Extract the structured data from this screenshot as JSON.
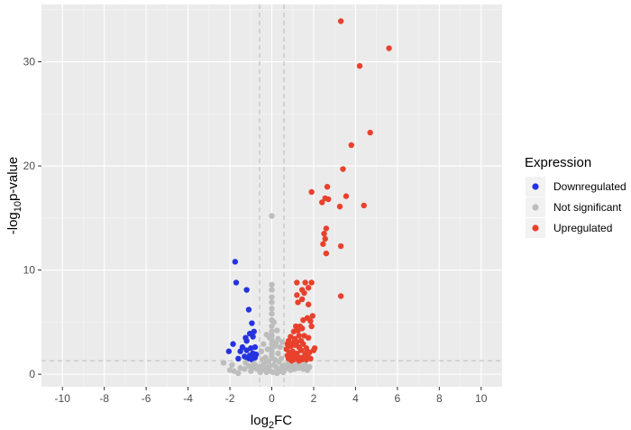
{
  "chart_data": {
    "type": "scatter",
    "title": "",
    "xlabel": "log2FC",
    "ylabel": "-log10p-value",
    "xlim": [
      -11,
      11
    ],
    "ylim": [
      -1.2,
      35.5
    ],
    "xticks": [
      -10,
      -8,
      -6,
      -4,
      -2,
      0,
      2,
      4,
      6,
      8,
      10
    ],
    "yticks": [
      0,
      10,
      20,
      30
    ],
    "x_major_tick_labels": [
      "-10",
      "-8",
      "-6",
      "-4",
      "-2",
      "0",
      "2",
      "4",
      "6",
      "8",
      "10"
    ],
    "y_tick_labels": [
      "0",
      "10",
      "20",
      "30"
    ],
    "grid": true,
    "legend_position": "right",
    "fc_threshold": 0.58,
    "p_threshold": 1.3,
    "legend_title": "Expression",
    "series": [
      {
        "name": "Downregulated",
        "color": "#2432e0",
        "points": [
          [
            -1.75,
            10.8
          ],
          [
            -1.7,
            8.8
          ],
          [
            -1.2,
            8.1
          ],
          [
            -1.1,
            6.2
          ],
          [
            -0.95,
            4.9
          ],
          [
            -0.85,
            4.1
          ],
          [
            -1.05,
            3.9
          ],
          [
            -0.9,
            3.6
          ],
          [
            -1.25,
            3.5
          ],
          [
            -1.2,
            3.2
          ],
          [
            -1.85,
            2.9
          ],
          [
            -1.4,
            2.6
          ],
          [
            -1.0,
            2.5
          ],
          [
            -0.8,
            2.6
          ],
          [
            -1.2,
            2.3
          ],
          [
            -1.5,
            2.2
          ],
          [
            -2.05,
            2.2
          ],
          [
            -0.9,
            2.0
          ],
          [
            -1.05,
            1.8
          ],
          [
            -1.3,
            1.7
          ],
          [
            -0.75,
            1.9
          ],
          [
            -1.6,
            1.5
          ],
          [
            -1.15,
            1.5
          ],
          [
            -0.95,
            1.4
          ],
          [
            -0.8,
            1.6
          ]
        ]
      },
      {
        "name": "Not significant",
        "color": "#bdbdbd",
        "points": [
          [
            0.0,
            15.2
          ],
          [
            0.0,
            8.6
          ],
          [
            0.0,
            8.1
          ],
          [
            0.0,
            7.4
          ],
          [
            0.0,
            6.9
          ],
          [
            0.0,
            6.3
          ],
          [
            0.0,
            5.8
          ],
          [
            0.0,
            5.2
          ],
          [
            0.0,
            4.6
          ],
          [
            0.0,
            4.1
          ],
          [
            0.0,
            3.7
          ],
          [
            0.0,
            3.3
          ],
          [
            0.0,
            2.9
          ],
          [
            0.0,
            2.5
          ],
          [
            0.0,
            2.2
          ],
          [
            0.0,
            1.9
          ],
          [
            0.0,
            1.6
          ],
          [
            0.15,
            1.4
          ],
          [
            -0.15,
            1.2
          ],
          [
            0.2,
            3.0
          ],
          [
            -0.2,
            2.4
          ],
          [
            0.3,
            2.0
          ],
          [
            -0.3,
            1.6
          ],
          [
            0.4,
            2.6
          ],
          [
            -0.4,
            2.9
          ],
          [
            0.5,
            3.1
          ],
          [
            -0.5,
            2.2
          ],
          [
            0.45,
            1.5
          ],
          [
            -0.45,
            1.4
          ],
          [
            0.1,
            0.9
          ],
          [
            0.2,
            0.7
          ],
          [
            0.3,
            0.5
          ],
          [
            0.4,
            0.3
          ],
          [
            0.5,
            0.8
          ],
          [
            0.6,
            0.4
          ],
          [
            -0.1,
            0.8
          ],
          [
            -0.2,
            0.6
          ],
          [
            -0.3,
            0.4
          ],
          [
            -0.4,
            0.9
          ],
          [
            -0.5,
            0.5
          ],
          [
            -0.6,
            0.7
          ],
          [
            0.7,
            0.9
          ],
          [
            0.8,
            0.6
          ],
          [
            0.9,
            0.4
          ],
          [
            1.0,
            0.8
          ],
          [
            1.1,
            0.5
          ],
          [
            1.2,
            0.9
          ],
          [
            -0.7,
            0.5
          ],
          [
            -0.8,
            0.9
          ],
          [
            -0.9,
            0.6
          ],
          [
            -1.0,
            0.3
          ],
          [
            -1.1,
            0.8
          ],
          [
            -1.3,
            0.5
          ],
          [
            1.3,
            0.6
          ],
          [
            1.4,
            0.8
          ],
          [
            1.5,
            0.5
          ],
          [
            1.6,
            0.9
          ],
          [
            1.7,
            0.4
          ],
          [
            1.8,
            0.7
          ],
          [
            -1.5,
            0.6
          ],
          [
            -1.8,
            0.3
          ],
          [
            -2.0,
            0.4
          ],
          [
            -2.3,
            1.1
          ],
          [
            -1.9,
            0.9
          ],
          [
            -1.6,
            0.1
          ],
          [
            0.05,
            0.2
          ],
          [
            -0.05,
            0.3
          ],
          [
            0.25,
            0.1
          ],
          [
            -0.25,
            0.2
          ],
          [
            0.55,
            0.2
          ],
          [
            -0.55,
            0.2
          ],
          [
            0.8,
            1.0
          ],
          [
            -0.85,
            1.0
          ],
          [
            1.3,
            1.1
          ],
          [
            -1.25,
            1.1
          ],
          [
            0.35,
            1.2
          ],
          [
            -0.35,
            1.1
          ],
          [
            0.15,
            2.7
          ],
          [
            -0.1,
            3.5
          ],
          [
            0.25,
            4.2
          ],
          [
            -0.25,
            3.8
          ],
          [
            0.1,
            5.0
          ],
          [
            0.3,
            3.4
          ]
        ]
      },
      {
        "name": "Upregulated",
        "color": "#e8412c",
        "points": [
          [
            3.3,
            33.9
          ],
          [
            5.6,
            31.3
          ],
          [
            4.2,
            29.6
          ],
          [
            4.7,
            23.2
          ],
          [
            3.8,
            22.0
          ],
          [
            3.4,
            19.7
          ],
          [
            2.65,
            18.0
          ],
          [
            1.9,
            17.5
          ],
          [
            2.55,
            16.9
          ],
          [
            3.55,
            17.1
          ],
          [
            2.7,
            16.8
          ],
          [
            2.4,
            16.5
          ],
          [
            4.4,
            16.2
          ],
          [
            3.25,
            16.1
          ],
          [
            2.6,
            14.0
          ],
          [
            2.5,
            13.5
          ],
          [
            2.55,
            13.0
          ],
          [
            3.3,
            12.3
          ],
          [
            2.45,
            12.5
          ],
          [
            2.6,
            11.6
          ],
          [
            3.3,
            7.5
          ],
          [
            1.9,
            8.8
          ],
          [
            1.6,
            8.8
          ],
          [
            1.2,
            8.8
          ],
          [
            1.75,
            8.3
          ],
          [
            1.45,
            8.1
          ],
          [
            1.55,
            7.8
          ],
          [
            1.2,
            7.6
          ],
          [
            1.45,
            7.2
          ],
          [
            1.25,
            6.9
          ],
          [
            1.75,
            6.7
          ],
          [
            1.95,
            5.6
          ],
          [
            1.7,
            5.4
          ],
          [
            1.85,
            5.1
          ],
          [
            1.5,
            5.2
          ],
          [
            1.35,
            4.6
          ],
          [
            1.15,
            4.6
          ],
          [
            1.25,
            4.2
          ],
          [
            1.45,
            4.4
          ],
          [
            1.9,
            4.6
          ],
          [
            1.05,
            4.1
          ],
          [
            0.9,
            3.6
          ],
          [
            0.8,
            3.2
          ],
          [
            1.1,
            3.4
          ],
          [
            1.3,
            3.7
          ],
          [
            1.55,
            3.7
          ],
          [
            1.75,
            3.5
          ],
          [
            2.05,
            2.5
          ],
          [
            2.0,
            2.3
          ],
          [
            0.75,
            2.9
          ],
          [
            0.9,
            2.7
          ],
          [
            1.1,
            2.8
          ],
          [
            1.3,
            2.6
          ],
          [
            1.5,
            2.9
          ],
          [
            1.65,
            2.5
          ],
          [
            0.7,
            2.4
          ],
          [
            0.85,
            2.1
          ],
          [
            1.0,
            2.2
          ],
          [
            1.2,
            2.0
          ],
          [
            1.4,
            2.3
          ],
          [
            1.6,
            2.0
          ],
          [
            1.8,
            2.1
          ],
          [
            0.75,
            1.8
          ],
          [
            0.95,
            1.7
          ],
          [
            1.15,
            1.8
          ],
          [
            1.35,
            1.6
          ],
          [
            1.55,
            1.7
          ],
          [
            1.75,
            1.6
          ],
          [
            0.8,
            1.5
          ],
          [
            1.05,
            1.4
          ],
          [
            1.25,
            1.5
          ],
          [
            1.45,
            1.4
          ],
          [
            1.65,
            1.4
          ],
          [
            1.85,
            1.5
          ],
          [
            1.0,
            3.0
          ],
          [
            1.2,
            3.1
          ],
          [
            1.4,
            3.2
          ],
          [
            0.95,
            1.3
          ],
          [
            1.3,
            1.3
          ]
        ]
      }
    ]
  }
}
